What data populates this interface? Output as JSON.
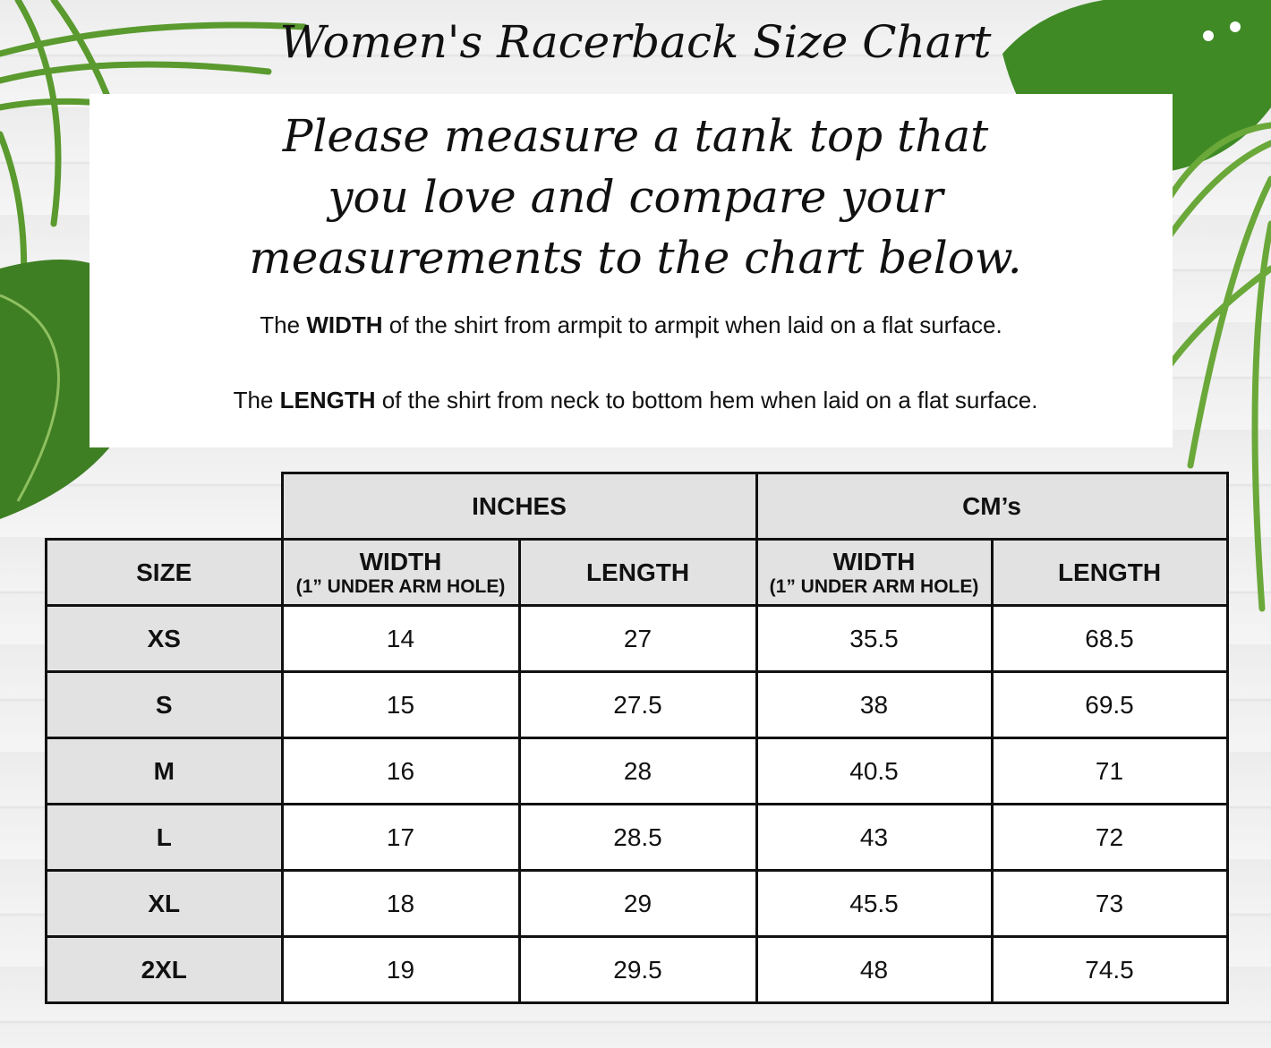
{
  "title": "Women's Racerback Size Chart",
  "intro": [
    "Please measure a tank top that",
    "you love and compare your",
    "measurements to the chart below."
  ],
  "width_note": {
    "pre": "The ",
    "bold": "WIDTH",
    "post": " of the shirt from armpit to armpit when laid on a flat surface."
  },
  "length_note": {
    "pre": "The ",
    "bold": "LENGTH",
    "post": " of the shirt from neck to bottom hem when laid on a flat surface."
  },
  "table": {
    "groups": [
      "INCHES",
      "CM’s"
    ],
    "size_header": "SIZE",
    "width_header": "WIDTH",
    "width_sub": "(1” UNDER ARM HOLE)",
    "length_header": "LENGTH",
    "rows": [
      [
        "XS",
        "14",
        "27",
        "35.5",
        "68.5"
      ],
      [
        "S",
        "15",
        "27.5",
        "38",
        "69.5"
      ],
      [
        "M",
        "16",
        "28",
        "40.5",
        "71"
      ],
      [
        "L",
        "17",
        "28.5",
        "43",
        "72"
      ],
      [
        "XL",
        "18",
        "29",
        "45.5",
        "73"
      ],
      [
        "2XL",
        "19",
        "29.5",
        "48",
        "74.5"
      ]
    ]
  },
  "colors": {
    "leaf": "#4f8f2a",
    "header_bg": "#e2e2e2"
  }
}
